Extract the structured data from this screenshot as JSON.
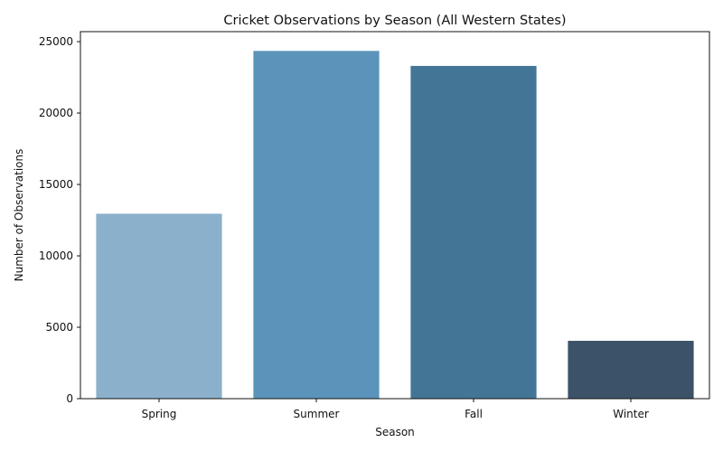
{
  "chart_data": {
    "type": "bar",
    "title": "Cricket Observations by Season (All Western States)",
    "xlabel": "Season",
    "ylabel": "Number of Observations",
    "categories": [
      "Spring",
      "Summer",
      "Fall",
      "Winter"
    ],
    "values": [
      12950,
      24350,
      23300,
      4050
    ],
    "ylim": [
      0,
      25700
    ],
    "yticks": [
      0,
      5000,
      10000,
      15000,
      20000,
      25000
    ],
    "grid": false,
    "legend": "none",
    "bar_colors": [
      "#8AB0CB",
      "#5B94BA",
      "#437696",
      "#3C5268"
    ]
  }
}
